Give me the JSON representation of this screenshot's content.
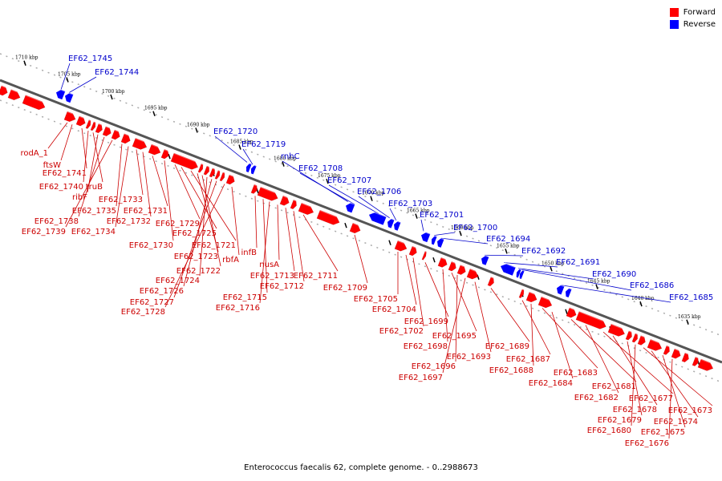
{
  "legend": {
    "forward_label": "Forward",
    "reverse_label": "Reverse",
    "forward_color": "#ff0000",
    "reverse_color": "#0000ff"
  },
  "caption": "Enterococcus faecalis 62, complete genome. - 0..2988673",
  "scale_labels": [
    "1710 kbp",
    "1705 kbp",
    "1700 kbp",
    "1695 kbp",
    "1690 kbp",
    "1685 kbp",
    "1680 kbp",
    "1675 kbp",
    "1670 kbp",
    "1665 kbp",
    "1660 kbp",
    "1655 kbp",
    "1650 kbp",
    "1645 kbp",
    "1640 kbp",
    "1635 kbp"
  ],
  "forward_labels": [
    "rodA_1",
    "ftsW",
    "EF62_1741",
    "EF62_1740",
    "truB",
    "ribF",
    "EF62_1738",
    "EF62_1739",
    "EF62_1735",
    "EF62_1734",
    "EF62_1733",
    "EF62_1732",
    "EF62_1731",
    "EF62_1730",
    "EF62_1729",
    "EF62_1725",
    "EF62_1721",
    "EF62_1723",
    "EF62_1722",
    "EF62_1724",
    "EF62_1726",
    "EF62_1727",
    "EF62_1728",
    "rbfA",
    "infB",
    "EF62_1715",
    "EF62_1716",
    "nusA",
    "EF62_1713",
    "EF62_1712",
    "EF62_1711",
    "EF62_1709",
    "EF62_1705",
    "EF62_1704",
    "EF62_1702",
    "EF62_1699",
    "EF62_1698",
    "EF62_1695",
    "EF62_1696",
    "EF62_1697",
    "EF62_1693",
    "EF62_1689",
    "EF62_1687",
    "EF62_1688",
    "EF62_1683",
    "EF62_1684",
    "EF62_1681",
    "EF62_1682",
    "EF62_1677",
    "EF62_1678",
    "EF62_1679",
    "EF62_1680",
    "EF62_1673",
    "EF62_1674",
    "EF62_1675",
    "EF62_1676"
  ],
  "reverse_labels": [
    "EF62_1745",
    "EF62_1744",
    "EF62_1720",
    "EF62_1719",
    "rnhC",
    "EF62_1708",
    "EF62_1707",
    "EF62_1706",
    "EF62_1703",
    "EF62_1701",
    "EF62_1700",
    "EF62_1694",
    "EF62_1692",
    "EF62_1691",
    "EF62_1690",
    "EF62_1686",
    "EF62_1685"
  ]
}
